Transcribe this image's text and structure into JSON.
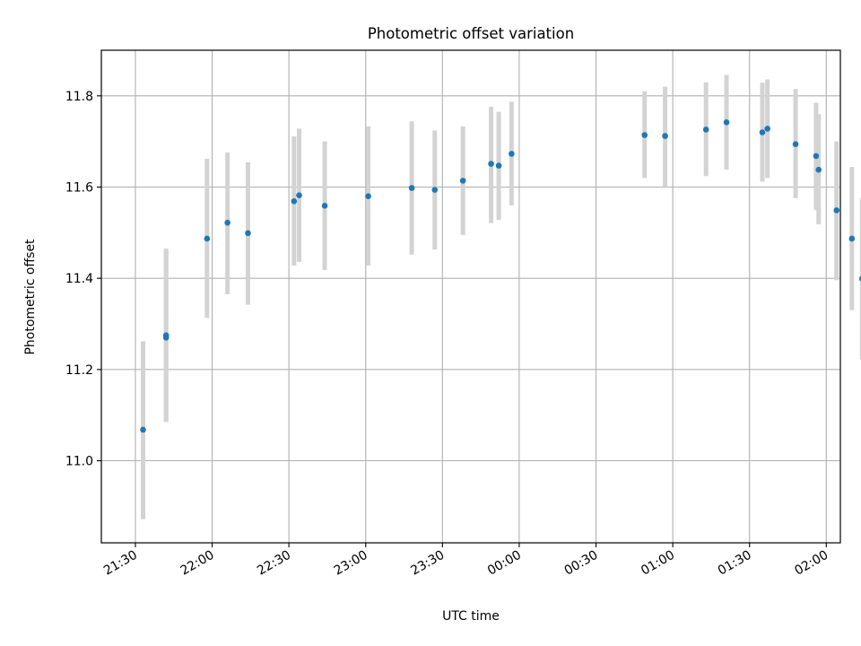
{
  "chart_data": {
    "type": "scatter",
    "title": "Photometric offset variation",
    "xlabel": "UTC time",
    "ylabel": "Photometric offset",
    "x_ticks": [
      "21:30",
      "22:00",
      "22:30",
      "23:00",
      "23:30",
      "00:00",
      "00:30",
      "01:00",
      "01:30",
      "02:00"
    ],
    "x_tick_minutes": [
      0,
      30,
      60,
      90,
      120,
      150,
      180,
      210,
      240,
      270
    ],
    "y_ticks": [
      "11.0",
      "11.2",
      "11.4",
      "11.6",
      "11.8"
    ],
    "y_tick_values": [
      11.0,
      11.2,
      11.4,
      11.6,
      11.8
    ],
    "xlim_minutes": [
      -13.3,
      275.5
    ],
    "ylim": [
      10.82,
      11.9
    ],
    "grid": true,
    "errorbar_color": "#d3d3d3",
    "point_color": "#1f77b4",
    "points": [
      {
        "t": "21:33",
        "y": 11.068,
        "lo": 10.872,
        "hi": 11.262
      },
      {
        "t": "21:42",
        "y": 11.27,
        "lo": 11.085,
        "hi": 11.46
      },
      {
        "t": "21:42",
        "y": 11.275,
        "lo": 11.085,
        "hi": 11.465
      },
      {
        "t": "21:58",
        "y": 11.487,
        "lo": 11.313,
        "hi": 11.662
      },
      {
        "t": "22:06",
        "y": 11.522,
        "lo": 11.365,
        "hi": 11.676
      },
      {
        "t": "22:14",
        "y": 11.499,
        "lo": 11.342,
        "hi": 11.654
      },
      {
        "t": "22:32",
        "y": 11.569,
        "lo": 11.428,
        "hi": 11.711
      },
      {
        "t": "22:34",
        "y": 11.582,
        "lo": 11.436,
        "hi": 11.728
      },
      {
        "t": "22:44",
        "y": 11.559,
        "lo": 11.418,
        "hi": 11.7
      },
      {
        "t": "23:01",
        "y": 11.58,
        "lo": 11.428,
        "hi": 11.733
      },
      {
        "t": "23:18",
        "y": 11.598,
        "lo": 11.452,
        "hi": 11.744
      },
      {
        "t": "23:27",
        "y": 11.594,
        "lo": 11.463,
        "hi": 11.724
      },
      {
        "t": "23:38",
        "y": 11.614,
        "lo": 11.495,
        "hi": 11.733
      },
      {
        "t": "23:49",
        "y": 11.651,
        "lo": 11.521,
        "hi": 11.776
      },
      {
        "t": "23:52",
        "y": 11.647,
        "lo": 11.528,
        "hi": 11.765
      },
      {
        "t": "23:57",
        "y": 11.673,
        "lo": 11.56,
        "hi": 11.787
      },
      {
        "t": "00:49",
        "y": 11.714,
        "lo": 11.62,
        "hi": 11.81
      },
      {
        "t": "00:57",
        "y": 11.712,
        "lo": 11.6,
        "hi": 11.82
      },
      {
        "t": "01:13",
        "y": 11.726,
        "lo": 11.624,
        "hi": 11.83
      },
      {
        "t": "01:21",
        "y": 11.742,
        "lo": 11.638,
        "hi": 11.846
      },
      {
        "t": "01:35",
        "y": 11.72,
        "lo": 11.612,
        "hi": 11.829
      },
      {
        "t": "01:37",
        "y": 11.728,
        "lo": 11.62,
        "hi": 11.836
      },
      {
        "t": "01:48",
        "y": 11.694,
        "lo": 11.576,
        "hi": 11.815
      },
      {
        "t": "01:56",
        "y": 11.668,
        "lo": 11.55,
        "hi": 11.785
      },
      {
        "t": "01:57",
        "y": 11.638,
        "lo": 11.518,
        "hi": 11.76
      },
      {
        "t": "02:04",
        "y": 11.549,
        "lo": 11.396,
        "hi": 11.7
      },
      {
        "t": "02:10",
        "y": 11.487,
        "lo": 11.33,
        "hi": 11.644
      },
      {
        "t": "02:14",
        "y": 11.399,
        "lo": 11.222,
        "hi": 11.576
      }
    ]
  }
}
